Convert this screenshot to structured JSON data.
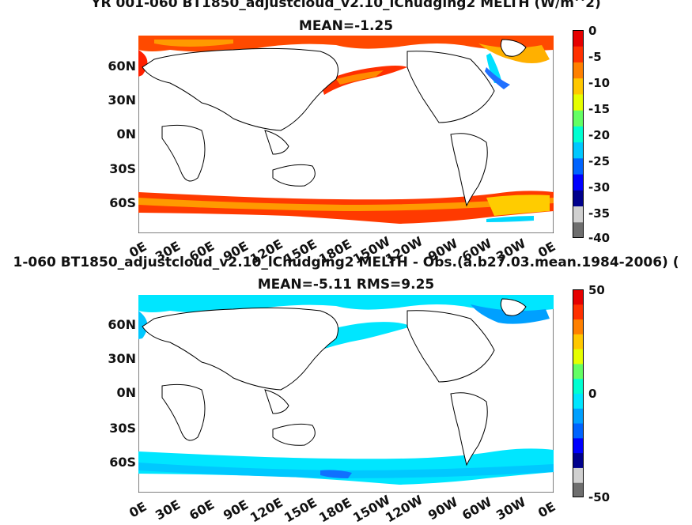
{
  "chart_data": [
    {
      "type": "heatmap",
      "title": "YR 001-060 BT1850_adjustcloud_v2.10_lChudging2  MELTH (W/m^2)",
      "subtitle": "MEAN=-1.25",
      "y_ticks": [
        "60N",
        "30N",
        "0N",
        "30S",
        "60S"
      ],
      "x_ticks": [
        "0E",
        "30E",
        "60E",
        "90E",
        "120E",
        "150E",
        "180E",
        "150W",
        "120W",
        "90W",
        "60W",
        "30W",
        "0E"
      ],
      "colorbar": {
        "min": -40,
        "max": 0,
        "ticks": [
          "0",
          "-5",
          "-10",
          "-15",
          "-20",
          "-25",
          "-30",
          "-35",
          "-40"
        ]
      }
    },
    {
      "type": "heatmap",
      "title": "1-060 BT1850_adjustcloud_v2.10_lChudging2 MELTH - Obs.(a.b27.03.mean.1984-2006) (",
      "subtitle": "MEAN=-5.11 RMS=9.25",
      "y_ticks": [
        "60N",
        "30N",
        "0N",
        "30S",
        "60S"
      ],
      "x_ticks": [
        "0E",
        "30E",
        "60E",
        "90E",
        "120E",
        "150E",
        "180E",
        "150W",
        "120W",
        "90W",
        "60W",
        "30W",
        "0E"
      ],
      "colorbar": {
        "min": -50,
        "max": 50,
        "ticks": [
          "50",
          "0",
          "-50"
        ]
      }
    }
  ],
  "colors": {
    "top_colormap": [
      "#6e6e6e",
      "#d0d0d0",
      "#00008c",
      "#0000ff",
      "#0064ff",
      "#00c8ff",
      "#00ffd2",
      "#64ff64",
      "#e6ff00",
      "#ffc800",
      "#ff8000",
      "#ff3000",
      "#e60000"
    ],
    "bottom_colormap": [
      "#6e6e6e",
      "#d0d0d0",
      "#00008c",
      "#0000ff",
      "#0064ff",
      "#00a0ff",
      "#00e6ff",
      "#00ffd2",
      "#64ff64",
      "#e6ff00",
      "#ffc800",
      "#ff8000",
      "#ff3000",
      "#e60000"
    ]
  }
}
